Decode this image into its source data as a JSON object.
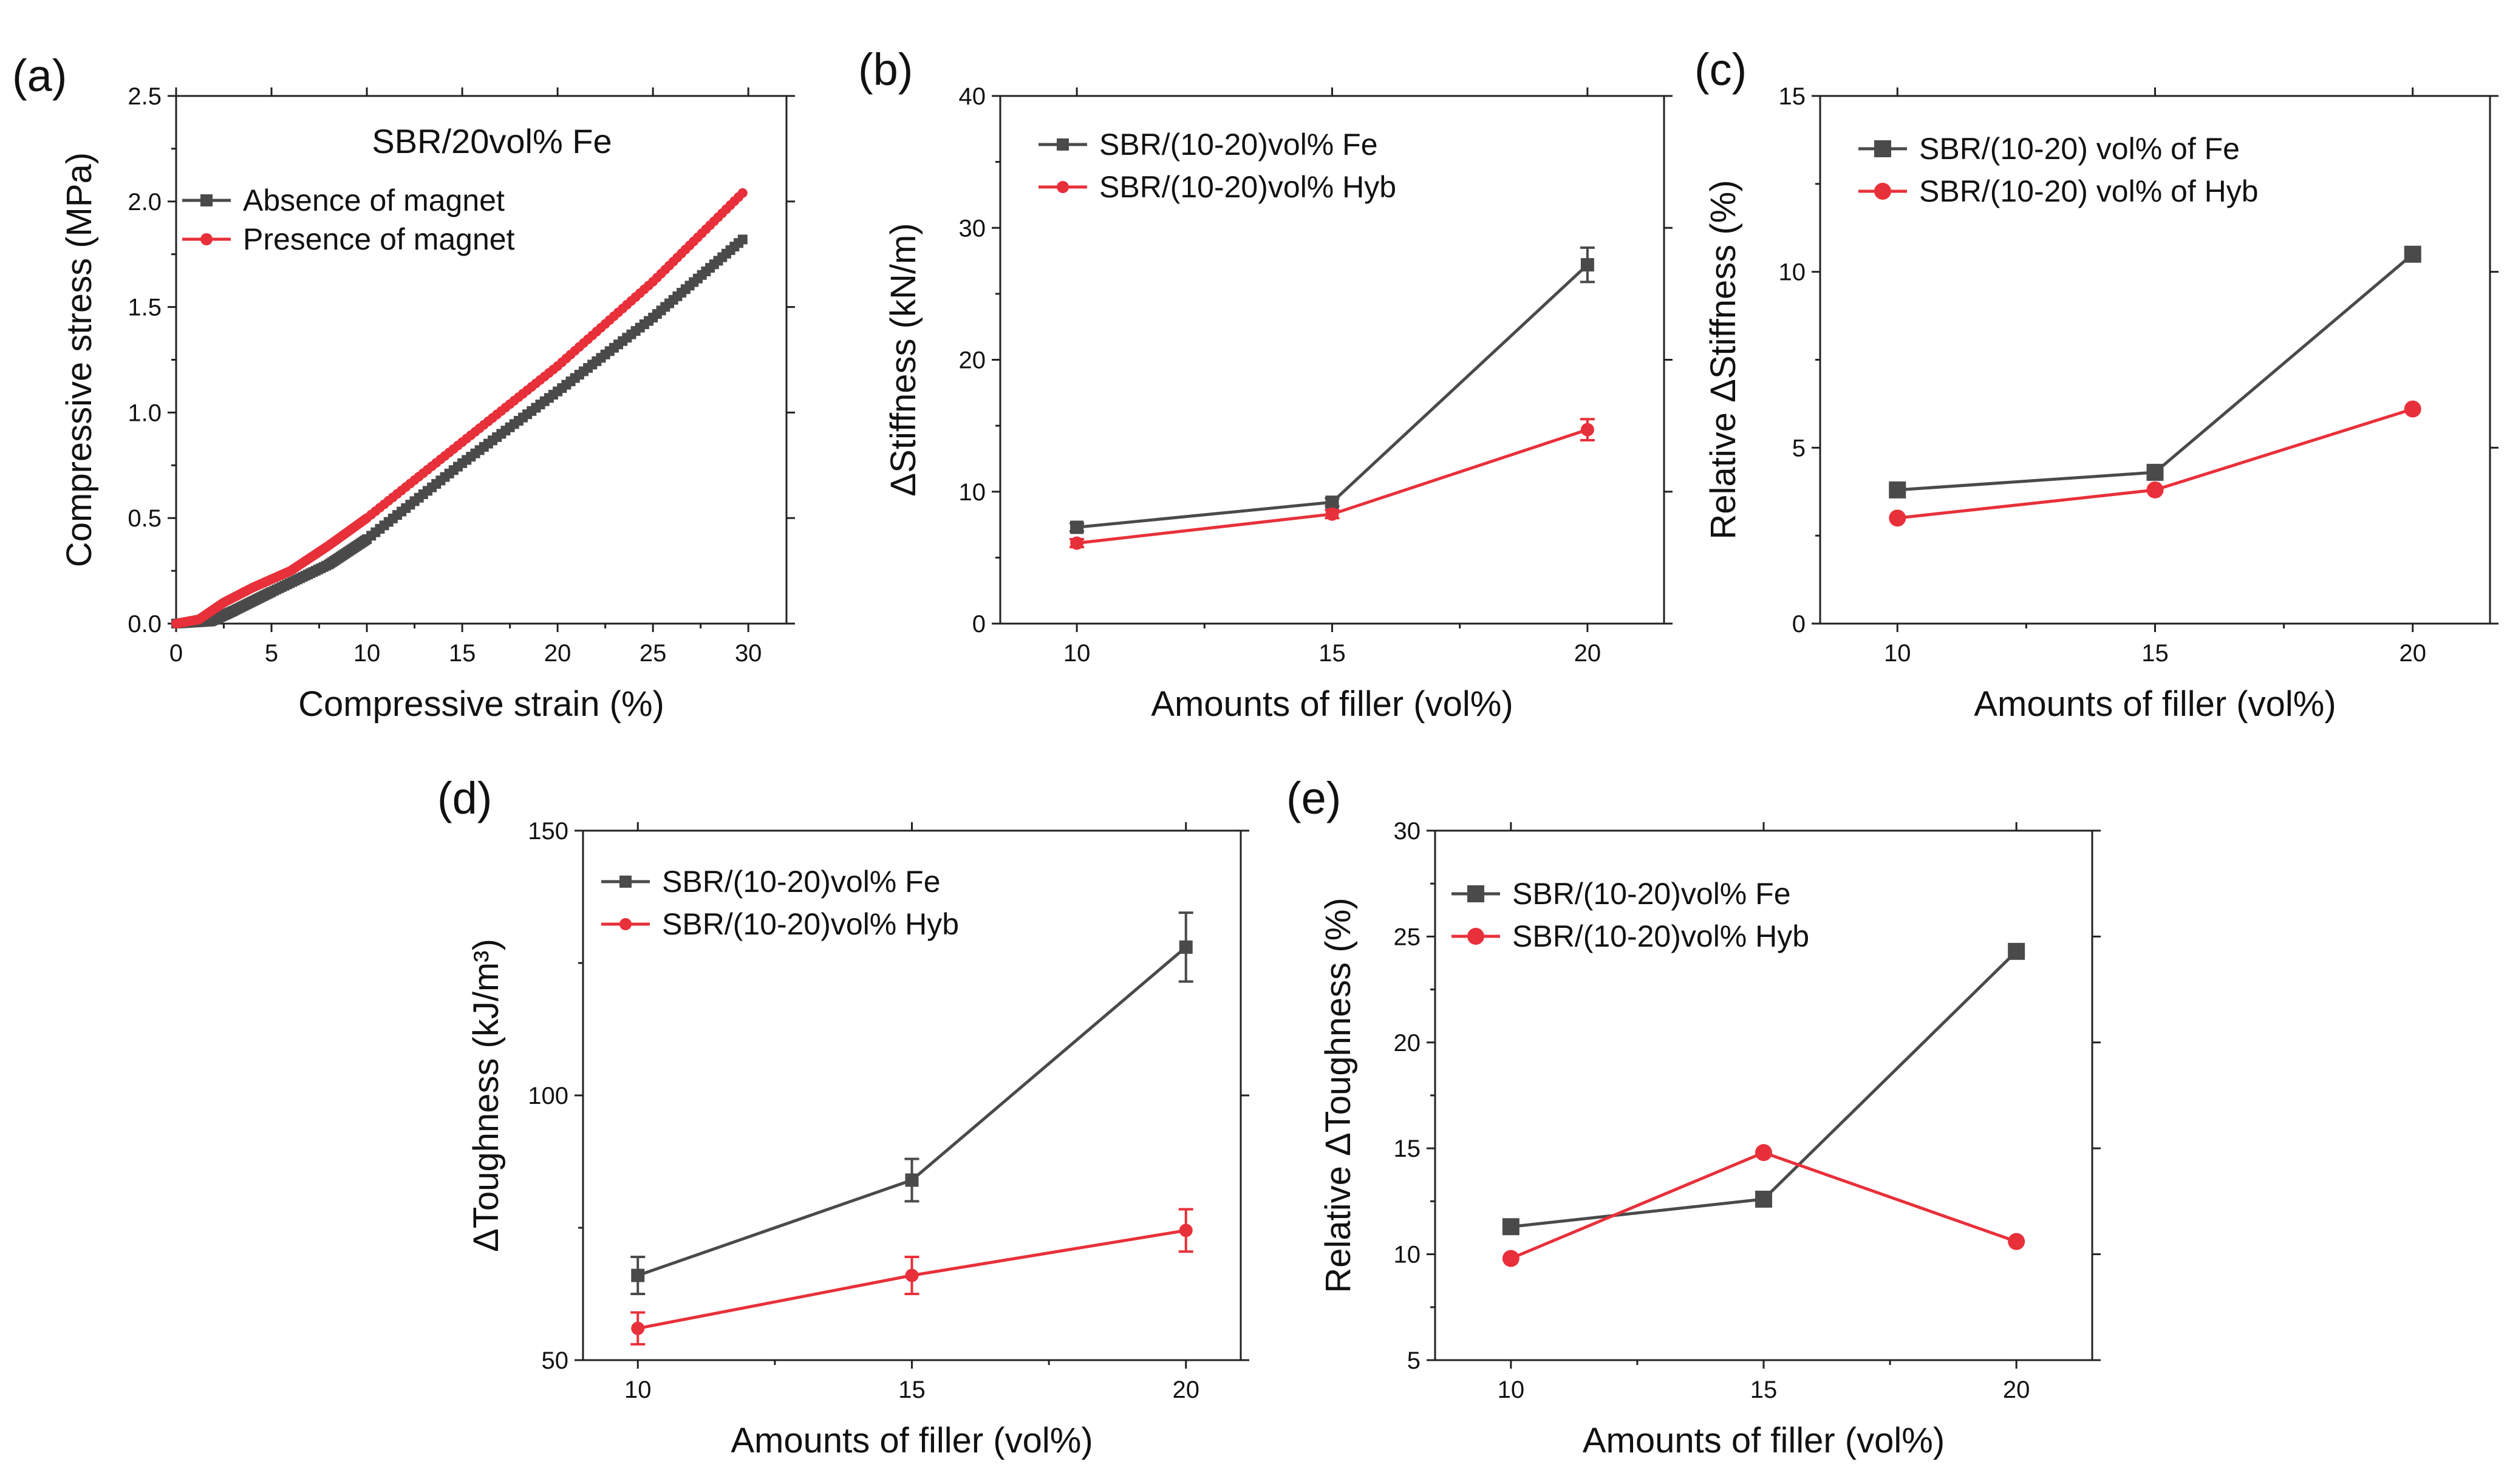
{
  "colors": {
    "fe": "#4a4a4a",
    "hyb": "#e8303a"
  },
  "chart_data": [
    {
      "panel": "(a)",
      "type": "line",
      "title": "SBR/20vol% Fe",
      "xlabel": "Compressive strain (%)",
      "ylabel": "Compressive stress (MPa)",
      "xlim": [
        0,
        32
      ],
      "ylim": [
        0,
        2.5
      ],
      "xticks": [
        "0",
        "5",
        "10",
        "15",
        "20",
        "25",
        "30"
      ],
      "yticks": [
        "0.0",
        "0.5",
        "1.0",
        "1.5",
        "2.0",
        "2.5"
      ],
      "series": [
        {
          "name": "Absence of magnet",
          "color": "#4a4a4a",
          "marker": "square",
          "x": [
            0,
            1.8,
            3,
            5,
            8,
            10,
            15,
            20,
            25,
            29.7
          ],
          "y": [
            0,
            0.01,
            0.06,
            0.15,
            0.28,
            0.4,
            0.76,
            1.1,
            1.45,
            1.82
          ]
        },
        {
          "name": "Presence of magnet",
          "color": "#e8303a",
          "marker": "circle",
          "x": [
            0,
            1.2,
            2.5,
            4,
            6,
            8,
            10,
            15,
            20,
            25,
            29.7
          ],
          "y": [
            0,
            0.02,
            0.1,
            0.17,
            0.25,
            0.37,
            0.5,
            0.86,
            1.22,
            1.62,
            2.04
          ]
        }
      ]
    },
    {
      "panel": "(b)",
      "type": "line",
      "xlabel": "Amounts of filler (vol%)",
      "ylabel": "ΔStiffness (kN/m)",
      "xlim": [
        8.5,
        21.5
      ],
      "ylim": [
        0,
        40
      ],
      "xticks": [
        "10",
        "15",
        "20"
      ],
      "yticks": [
        "0",
        "10",
        "20",
        "30",
        "40"
      ],
      "series": [
        {
          "name": "SBR/(10-20)vol% Fe",
          "color": "#4a4a4a",
          "marker": "square",
          "x": [
            10,
            15,
            20
          ],
          "y": [
            7.3,
            9.2,
            27.2
          ],
          "err": [
            0.3,
            0.3,
            1.3
          ]
        },
        {
          "name": "SBR/(10-20)vol% Hyb",
          "color": "#e8303a",
          "marker": "circle",
          "x": [
            10,
            15,
            20
          ],
          "y": [
            6.1,
            8.3,
            14.7
          ],
          "err": [
            0.3,
            0.3,
            0.8
          ]
        }
      ]
    },
    {
      "panel": "(c)",
      "type": "line",
      "xlabel": "Amounts of filler (vol%)",
      "ylabel": "Relative ΔStiffness (%)",
      "xlim": [
        8.5,
        21.5
      ],
      "ylim": [
        0,
        15
      ],
      "xticks": [
        "10",
        "15",
        "20"
      ],
      "yticks": [
        "0",
        "5",
        "10",
        "15"
      ],
      "series": [
        {
          "name": "SBR/(10-20) vol% of Fe",
          "color": "#4a4a4a",
          "marker": "square",
          "x": [
            10,
            15,
            20
          ],
          "y": [
            3.8,
            4.3,
            10.5
          ]
        },
        {
          "name": "SBR/(10-20) vol% of Hyb",
          "color": "#e8303a",
          "marker": "circle",
          "x": [
            10,
            15,
            20
          ],
          "y": [
            3.0,
            3.8,
            6.1
          ]
        }
      ]
    },
    {
      "panel": "(d)",
      "type": "line",
      "xlabel": "Amounts of filler (vol%)",
      "ylabel": "ΔToughness (kJ/m³)",
      "xlim": [
        9,
        21
      ],
      "ylim": [
        50,
        150
      ],
      "xticks": [
        "10",
        "15",
        "20"
      ],
      "yticks": [
        "50",
        "100",
        "150"
      ],
      "series": [
        {
          "name": "SBR/(10-20)vol% Fe",
          "color": "#4a4a4a",
          "marker": "square",
          "x": [
            10,
            15,
            20
          ],
          "y": [
            66,
            84,
            128
          ],
          "err": [
            3.5,
            4.0,
            6.5
          ]
        },
        {
          "name": "SBR/(10-20)vol% Hyb",
          "color": "#e8303a",
          "marker": "circle",
          "x": [
            10,
            15,
            20
          ],
          "y": [
            56,
            66,
            74.5
          ],
          "err": [
            3.0,
            3.5,
            4.0
          ]
        }
      ]
    },
    {
      "panel": "(e)",
      "type": "line",
      "xlabel": "Amounts of filler (vol%)",
      "ylabel": "Relative ΔToughness (%)",
      "xlim": [
        8.5,
        21.5
      ],
      "ylim": [
        5,
        30
      ],
      "xticks": [
        "10",
        "15",
        "20"
      ],
      "yticks": [
        "5",
        "10",
        "15",
        "20",
        "25",
        "30"
      ],
      "series": [
        {
          "name": "SBR/(10-20)vol% Fe",
          "color": "#4a4a4a",
          "marker": "square",
          "x": [
            10,
            15,
            20
          ],
          "y": [
            11.3,
            12.6,
            24.3
          ]
        },
        {
          "name": "SBR/(10-20)vol% Hyb",
          "color": "#e8303a",
          "marker": "circle",
          "x": [
            10,
            15,
            20
          ],
          "y": [
            9.8,
            14.8,
            10.6
          ]
        }
      ]
    }
  ]
}
